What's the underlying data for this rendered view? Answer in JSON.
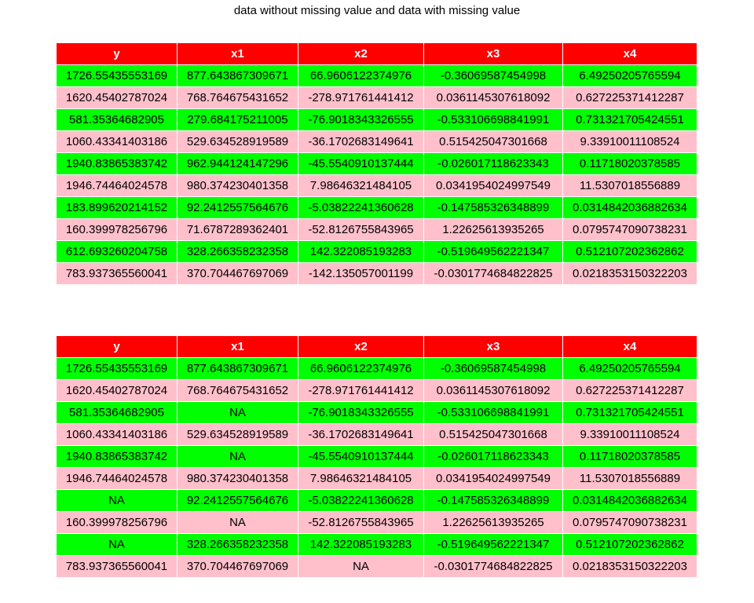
{
  "title": "data without missing value and data with missing value",
  "colors": {
    "header_bg": "#ff0000",
    "header_text": "#ffffff",
    "row_odd": "#00ff00",
    "row_even": "#ffc0cb"
  },
  "tables": [
    {
      "columns": [
        "y",
        "x1",
        "x2",
        "x3",
        "x4"
      ],
      "rows": [
        [
          "1726.55435553169",
          "877.643867309671",
          "66.9606122374976",
          "-0.36069587454998",
          "6.49250205765594"
        ],
        [
          "1620.45402787024",
          "768.764675431652",
          "-278.971761441412",
          "0.0361145307618092",
          "0.627225371412287"
        ],
        [
          "581.35364682905",
          "279.684175211005",
          "-76.9018343326555",
          "-0.533106698841991",
          "0.731321705424551"
        ],
        [
          "1060.43341403186",
          "529.634528919589",
          "-36.1702683149641",
          "0.515425047301668",
          "9.33910011108524"
        ],
        [
          "1940.83865383742",
          "962.944124147296",
          "-45.5540910137444",
          "-0.026017118623343",
          "0.11718020378585"
        ],
        [
          "1946.74464024578",
          "980.374230401358",
          "7.98646321484105",
          "0.0341954024997549",
          "11.5307018556889"
        ],
        [
          "183.899620214152",
          "92.2412557564676",
          "-5.03822241360628",
          "-0.147585326348899",
          "0.0314842036882634"
        ],
        [
          "160.399978256796",
          "71.6787289362401",
          "-52.8126755843965",
          "1.22625613935265",
          "0.0795747090738231"
        ],
        [
          "612.693260204758",
          "328.266358232358",
          "142.322085193283",
          "-0.519649562221347",
          "0.512107202362862"
        ],
        [
          "783.937365560041",
          "370.704467697069",
          "-142.135057001199",
          "-0.0301774684822825",
          "0.0218353150322203"
        ]
      ]
    },
    {
      "columns": [
        "y",
        "x1",
        "x2",
        "x3",
        "x4"
      ],
      "rows": [
        [
          "1726.55435553169",
          "877.643867309671",
          "66.9606122374976",
          "-0.36069587454998",
          "6.49250205765594"
        ],
        [
          "1620.45402787024",
          "768.764675431652",
          "-278.971761441412",
          "0.0361145307618092",
          "0.627225371412287"
        ],
        [
          "581.35364682905",
          "NA",
          "-76.9018343326555",
          "-0.533106698841991",
          "0.731321705424551"
        ],
        [
          "1060.43341403186",
          "529.634528919589",
          "-36.1702683149641",
          "0.515425047301668",
          "9.33910011108524"
        ],
        [
          "1940.83865383742",
          "NA",
          "-45.5540910137444",
          "-0.026017118623343",
          "0.11718020378585"
        ],
        [
          "1946.74464024578",
          "980.374230401358",
          "7.98646321484105",
          "0.0341954024997549",
          "11.5307018556889"
        ],
        [
          "NA",
          "92.2412557564676",
          "-5.03822241360628",
          "-0.147585326348899",
          "0.0314842036882634"
        ],
        [
          "160.399978256796",
          "NA",
          "-52.8126755843965",
          "1.22625613935265",
          "0.0795747090738231"
        ],
        [
          "NA",
          "328.266358232358",
          "142.322085193283",
          "-0.519649562221347",
          "0.512107202362862"
        ],
        [
          "783.937365560041",
          "370.704467697069",
          "NA",
          "-0.0301774684822825",
          "0.0218353150322203"
        ]
      ]
    }
  ]
}
